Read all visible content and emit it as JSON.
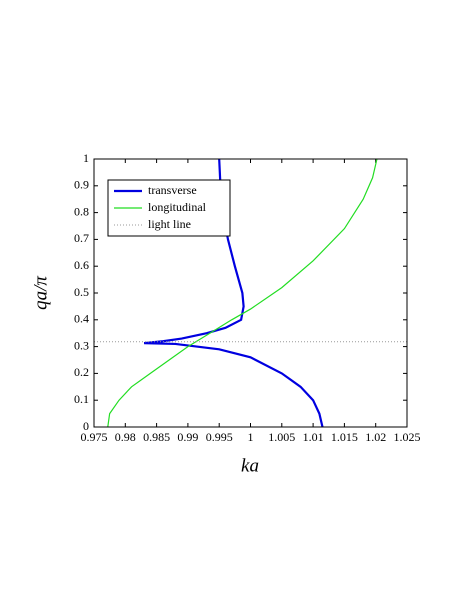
{
  "chart_data": {
    "type": "line",
    "x_label": "ka",
    "y_label": "qa/π",
    "xlim": [
      0.975,
      1.025
    ],
    "ylim": [
      0,
      1
    ],
    "xticks": [
      0.975,
      0.98,
      0.985,
      0.99,
      0.995,
      1,
      1.005,
      1.01,
      1.015,
      1.02,
      1.025
    ],
    "yticks": [
      0,
      0.1,
      0.2,
      0.3,
      0.4,
      0.5,
      0.6,
      0.7,
      0.8,
      0.9,
      1
    ],
    "legend": "upper left",
    "series": [
      {
        "name": "transverse",
        "color": "#0000e0",
        "width": 2.2,
        "dash": "solid",
        "x": [
          0.995,
          0.9952,
          0.9956,
          0.9964,
          0.9975,
          0.9987,
          0.9989,
          0.9985,
          0.996,
          0.993,
          0.989,
          0.986,
          0.983,
          0.988,
          0.995,
          1.0,
          1.005,
          1.008,
          1.01,
          1.011,
          1.0115
        ],
        "values": [
          1.0,
          0.9,
          0.8,
          0.7,
          0.6,
          0.5,
          0.45,
          0.4,
          0.37,
          0.35,
          0.33,
          0.32,
          0.313,
          0.31,
          0.29,
          0.26,
          0.2,
          0.15,
          0.1,
          0.05,
          0
        ]
      },
      {
        "name": "longitudinal",
        "color": "#22dd22",
        "width": 1.2,
        "dash": "solid",
        "x": [
          0.9772,
          0.9775,
          0.979,
          0.981,
          0.984,
          0.987,
          0.99,
          0.9935,
          0.997,
          1.0,
          1.005,
          1.01,
          1.015,
          1.018,
          1.0195,
          1.0202
        ],
        "values": [
          0,
          0.05,
          0.1,
          0.15,
          0.2,
          0.25,
          0.3,
          0.35,
          0.4,
          0.44,
          0.52,
          0.62,
          0.74,
          0.85,
          0.93,
          1.0
        ]
      },
      {
        "name": "light line",
        "color": "#999999",
        "width": 1,
        "dash": "dotted",
        "x": [
          0.975,
          1.025
        ],
        "values": [
          0.318,
          0.318
        ]
      }
    ]
  }
}
